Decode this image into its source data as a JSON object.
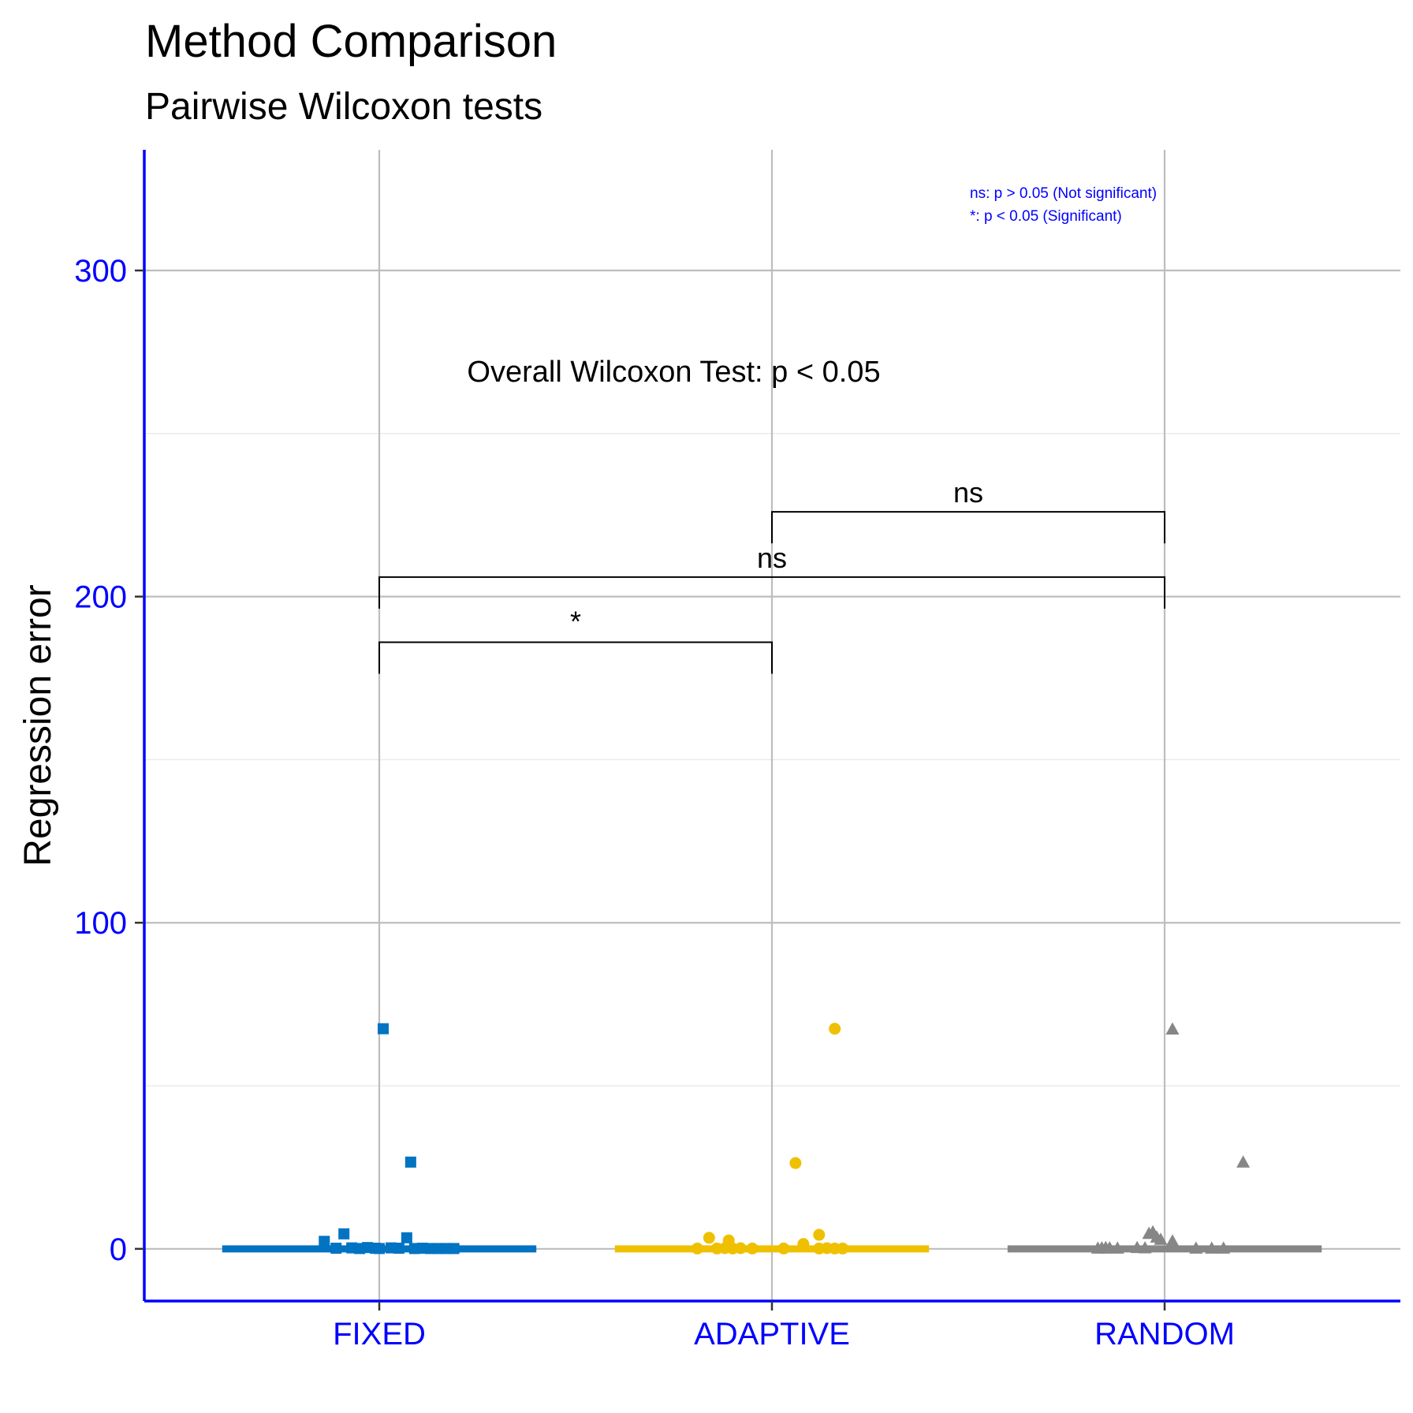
{
  "chart_data": {
    "type": "scatter",
    "title": "Method Comparison",
    "subtitle": "Pairwise Wilcoxon tests",
    "xlabel": "",
    "ylabel": "Regression error",
    "ylim": [
      -16,
      337
    ],
    "y_ticks": [
      0,
      100,
      200,
      300
    ],
    "grid": true,
    "axis_color": "#0000FF",
    "categories": [
      "FIXED",
      "ADAPTIVE",
      "RANDOM"
    ],
    "series": [
      {
        "category": "FIXED",
        "color": "#0073C2",
        "shape": "square",
        "median": 0,
        "points": [
          {
            "x": 0.01,
            "y": 67.5
          },
          {
            "x": 0.08,
            "y": 26.6
          },
          {
            "x": -0.09,
            "y": 4.6
          },
          {
            "x": 0.07,
            "y": 3.4
          },
          {
            "x": -0.14,
            "y": 2.3
          },
          {
            "x": -0.11,
            "y": 0.2
          },
          {
            "x": -0.07,
            "y": 0.3
          },
          {
            "x": -0.05,
            "y": 0.1
          },
          {
            "x": -0.03,
            "y": 0.4
          },
          {
            "x": -0.01,
            "y": 0.2
          },
          {
            "x": 0.0,
            "y": 0.1
          },
          {
            "x": 0.03,
            "y": 0.3
          },
          {
            "x": 0.05,
            "y": 0.2
          },
          {
            "x": 0.09,
            "y": 0.1
          },
          {
            "x": 0.11,
            "y": 0.2
          },
          {
            "x": 0.13,
            "y": 0.1
          },
          {
            "x": 0.15,
            "y": 0.1
          },
          {
            "x": 0.17,
            "y": 0.1
          },
          {
            "x": 0.19,
            "y": 0.1
          }
        ]
      },
      {
        "category": "ADAPTIVE",
        "color": "#EFC000",
        "shape": "circle",
        "median": 0,
        "points": [
          {
            "x": 0.16,
            "y": 67.5
          },
          {
            "x": 0.06,
            "y": 26.3
          },
          {
            "x": -0.16,
            "y": 3.4
          },
          {
            "x": 0.12,
            "y": 4.3
          },
          {
            "x": -0.11,
            "y": 2.6
          },
          {
            "x": 0.08,
            "y": 1.5
          },
          {
            "x": -0.19,
            "y": 0.1
          },
          {
            "x": -0.14,
            "y": 0.1
          },
          {
            "x": -0.12,
            "y": 0.2
          },
          {
            "x": -0.1,
            "y": 0.1
          },
          {
            "x": -0.08,
            "y": 0.2
          },
          {
            "x": -0.05,
            "y": 0.1
          },
          {
            "x": 0.03,
            "y": 0.1
          },
          {
            "x": 0.12,
            "y": 0.1
          },
          {
            "x": 0.14,
            "y": 0.2
          },
          {
            "x": 0.16,
            "y": 0.1
          },
          {
            "x": 0.18,
            "y": 0.1
          }
        ]
      },
      {
        "category": "RANDOM",
        "color": "#868686",
        "shape": "triangle",
        "median": 0,
        "points": [
          {
            "x": 0.02,
            "y": 67.3
          },
          {
            "x": 0.2,
            "y": 26.5
          },
          {
            "x": -0.04,
            "y": 4.6
          },
          {
            "x": -0.03,
            "y": 5.1
          },
          {
            "x": -0.02,
            "y": 3.5
          },
          {
            "x": -0.01,
            "y": 2.8
          },
          {
            "x": 0.02,
            "y": 2.3
          },
          {
            "x": -0.17,
            "y": 0.1
          },
          {
            "x": -0.16,
            "y": 0.2
          },
          {
            "x": -0.15,
            "y": 0.1
          },
          {
            "x": -0.15,
            "y": 0.3
          },
          {
            "x": -0.14,
            "y": 0.2
          },
          {
            "x": -0.12,
            "y": 0.1
          },
          {
            "x": -0.07,
            "y": 0.3
          },
          {
            "x": -0.05,
            "y": 0.2
          },
          {
            "x": 0.08,
            "y": 0.1
          },
          {
            "x": 0.12,
            "y": 0.1
          },
          {
            "x": 0.15,
            "y": 0.1
          }
        ]
      }
    ],
    "comparisons": [
      {
        "from": "ADAPTIVE",
        "to": "RANDOM",
        "y": 226,
        "label": "ns"
      },
      {
        "from": "FIXED",
        "to": "RANDOM",
        "y": 206,
        "label": "ns"
      },
      {
        "from": "FIXED",
        "to": "ADAPTIVE",
        "y": 186,
        "label": "*"
      }
    ],
    "annotation": {
      "text": "Overall Wilcoxon Test: p < 0.05",
      "x": 1.75,
      "y": 269
    },
    "significance_legend": {
      "lines": [
        "ns: p > 0.05 (Not significant)",
        "*: p < 0.05 (Significant)"
      ],
      "placement": "top-right",
      "color": "#0000FF"
    }
  }
}
